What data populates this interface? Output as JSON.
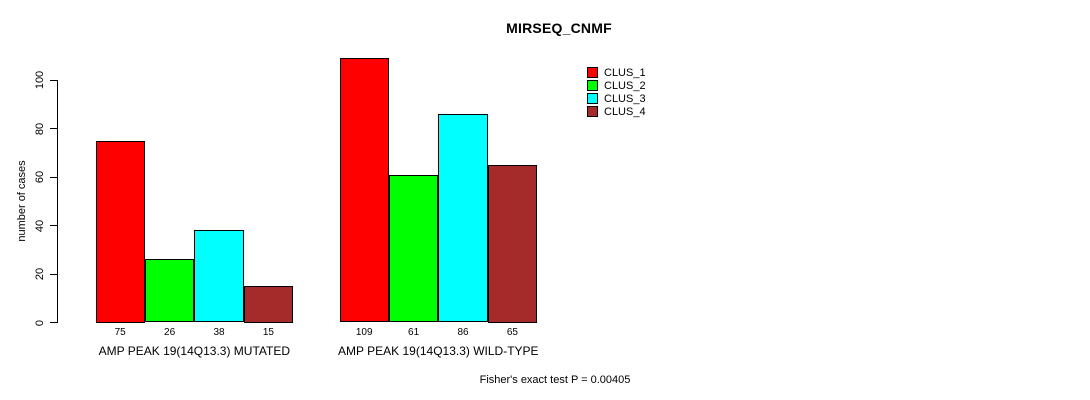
{
  "colors": {
    "background": "#ffffff",
    "text": "#000000",
    "bar_border": "#000000"
  },
  "chart_data": {
    "type": "bar",
    "title": "MIRSEQ_CNMF",
    "xlabel": "",
    "ylabel": "number of cases",
    "ylim": [
      0,
      110
    ],
    "yticks": [
      0,
      20,
      40,
      60,
      80,
      100
    ],
    "grid": false,
    "legend_position": "top-right",
    "categories": [
      "AMP PEAK 19(14Q13.3) MUTATED",
      "AMP PEAK 19(14Q13.3) WILD-TYPE"
    ],
    "series": [
      {
        "name": "CLUS_1",
        "color": "#ff0000",
        "values": [
          75,
          109
        ]
      },
      {
        "name": "CLUS_2",
        "color": "#00ff00",
        "values": [
          26,
          61
        ]
      },
      {
        "name": "CLUS_3",
        "color": "#00ffff",
        "values": [
          38,
          86
        ]
      },
      {
        "name": "CLUS_4",
        "color": "#a52a2a",
        "values": [
          15,
          65
        ]
      }
    ],
    "bar_value_labels_shown": true,
    "annotation": "Fisher's exact test P = 0.00405"
  }
}
